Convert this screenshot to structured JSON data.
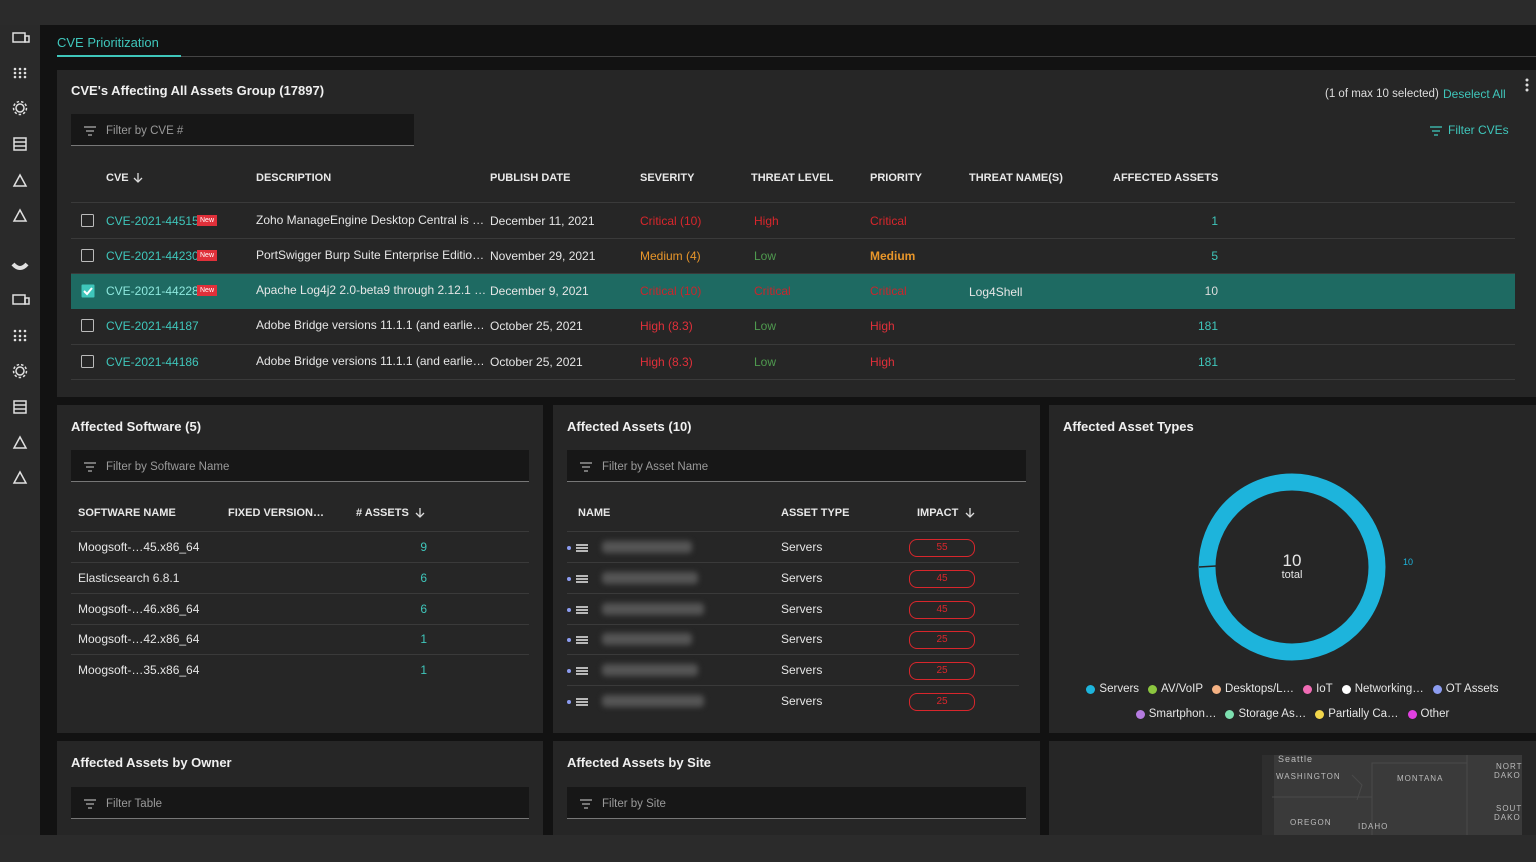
{
  "tab": "CVE Prioritization",
  "cve_panel": {
    "title": "CVE's Affecting All Assets Group (17897)",
    "selection": "(1 of max 10 selected)",
    "deselect": "Deselect All",
    "filter_placeholder": "Filter by CVE #",
    "filter_button": "Filter CVEs",
    "columns": [
      "CVE",
      "DESCRIPTION",
      "PUBLISH DATE",
      "SEVERITY",
      "THREAT LEVEL",
      "PRIORITY",
      "THREAT NAME(S)",
      "AFFECTED ASSETS"
    ],
    "rows": [
      {
        "cve": "CVE-2021-44515",
        "badge": "New",
        "description": "Zoho ManageEngine Desktop Central is …",
        "publish_date": "December 11, 2021",
        "severity": "Critical (10)",
        "threat_level": "High",
        "priority": "Critical",
        "affected_assets": 1,
        "selected": false,
        "colors": {
          "severity": "#d8262c",
          "threat_level": "#d8262c",
          "priority": "#d8262c"
        }
      },
      {
        "cve": "CVE-2021-44230",
        "badge": "New",
        "description": "PortSwigger Burp Suite Enterprise Editio…",
        "publish_date": "November 29, 2021",
        "severity": "Medium (4)",
        "threat_level": "Low",
        "priority": "Medium",
        "affected_assets": 5,
        "selected": false,
        "colors": {
          "severity": "#e8962a",
          "threat_level": "#4f9a4f",
          "priority": "#e8962a"
        }
      },
      {
        "cve": "CVE-2021-44228",
        "badge": "New",
        "description": "Apache Log4j2 2.0-beta9 through 2.12.1 …",
        "publish_date": "December 9, 2021",
        "severity": "Critical (10)",
        "threat_level": "Critical",
        "priority": "Critical",
        "threat_names": "Log4Shell",
        "affected_assets": 10,
        "selected": true,
        "colors": {
          "severity": "#c8262c",
          "threat_level": "#c8262c",
          "priority": "#c8262c"
        }
      },
      {
        "cve": "CVE-2021-44187",
        "description": "Adobe Bridge versions 11.1.1 (and earlie…",
        "publish_date": "October 25, 2021",
        "severity": "High (8.3)",
        "threat_level": "Low",
        "priority": "High",
        "affected_assets": 181,
        "selected": false,
        "colors": {
          "severity": "#e0303a",
          "threat_level": "#4f9a4f",
          "priority": "#e0303a"
        }
      },
      {
        "cve": "CVE-2021-44186",
        "description": "Adobe Bridge versions 11.1.1 (and earlie…",
        "publish_date": "October 25, 2021",
        "severity": "High (8.3)",
        "threat_level": "Low",
        "priority": "High",
        "affected_assets": 181,
        "selected": false,
        "colors": {
          "severity": "#e0303a",
          "threat_level": "#4f9a4f",
          "priority": "#e0303a"
        }
      }
    ]
  },
  "software_panel": {
    "title": "Affected Software (5)",
    "filter_placeholder": "Filter by Software Name",
    "columns": [
      "SOFTWARE NAME",
      "FIXED VERSION…",
      "# ASSETS"
    ],
    "rows": [
      {
        "name": "Moogsoft-…45.x86_64",
        "assets": 9
      },
      {
        "name": "Elasticsearch 6.8.1",
        "assets": 6
      },
      {
        "name": "Moogsoft-…46.x86_64",
        "assets": 6
      },
      {
        "name": "Moogsoft-…42.x86_64",
        "assets": 1
      },
      {
        "name": "Moogsoft-…35.x86_64",
        "assets": 1
      }
    ]
  },
  "assets_panel": {
    "title": "Affected Assets (10)",
    "filter_placeholder": "Filter by Asset Name",
    "columns": [
      "NAME",
      "ASSET TYPE",
      "IMPACT"
    ],
    "rows": [
      {
        "asset_type": "Servers",
        "impact": 55
      },
      {
        "asset_type": "Servers",
        "impact": 45
      },
      {
        "asset_type": "Servers",
        "impact": 45
      },
      {
        "asset_type": "Servers",
        "impact": 25
      },
      {
        "asset_type": "Servers",
        "impact": 25
      },
      {
        "asset_type": "Servers",
        "impact": 25
      }
    ]
  },
  "asset_types_panel": {
    "title": "Affected Asset Types",
    "center_value": 10,
    "center_label": "total",
    "segment_label": 10,
    "ring_color": "#1db4dc",
    "legend": [
      {
        "name": "Servers",
        "color": "#1db4dc"
      },
      {
        "name": "AV/VoIP",
        "color": "#8cc63f"
      },
      {
        "name": "Desktops/L…",
        "color": "#f4b183"
      },
      {
        "name": "IoT",
        "color": "#f06bb4"
      },
      {
        "name": "Networking…",
        "color": "#ffffff"
      },
      {
        "name": "OT Assets",
        "color": "#8c9cf0"
      },
      {
        "name": "Smartphon…",
        "color": "#b57be0"
      },
      {
        "name": "Storage As…",
        "color": "#7de0b0"
      },
      {
        "name": "Partially Ca…",
        "color": "#f2d64b"
      },
      {
        "name": "Other",
        "color": "#e040e0"
      }
    ]
  },
  "owner_panel": {
    "title": "Affected Assets by Owner",
    "filter_placeholder": "Filter Table"
  },
  "site_panel": {
    "title": "Affected Assets by Site",
    "filter_placeholder": "Filter by Site"
  },
  "map": {
    "labels": [
      "Seattle",
      "WASHINGTON",
      "MONTANA",
      "OREGON",
      "IDAHO",
      "NORT",
      "DAKO",
      "SOUT",
      "DAKO"
    ]
  }
}
